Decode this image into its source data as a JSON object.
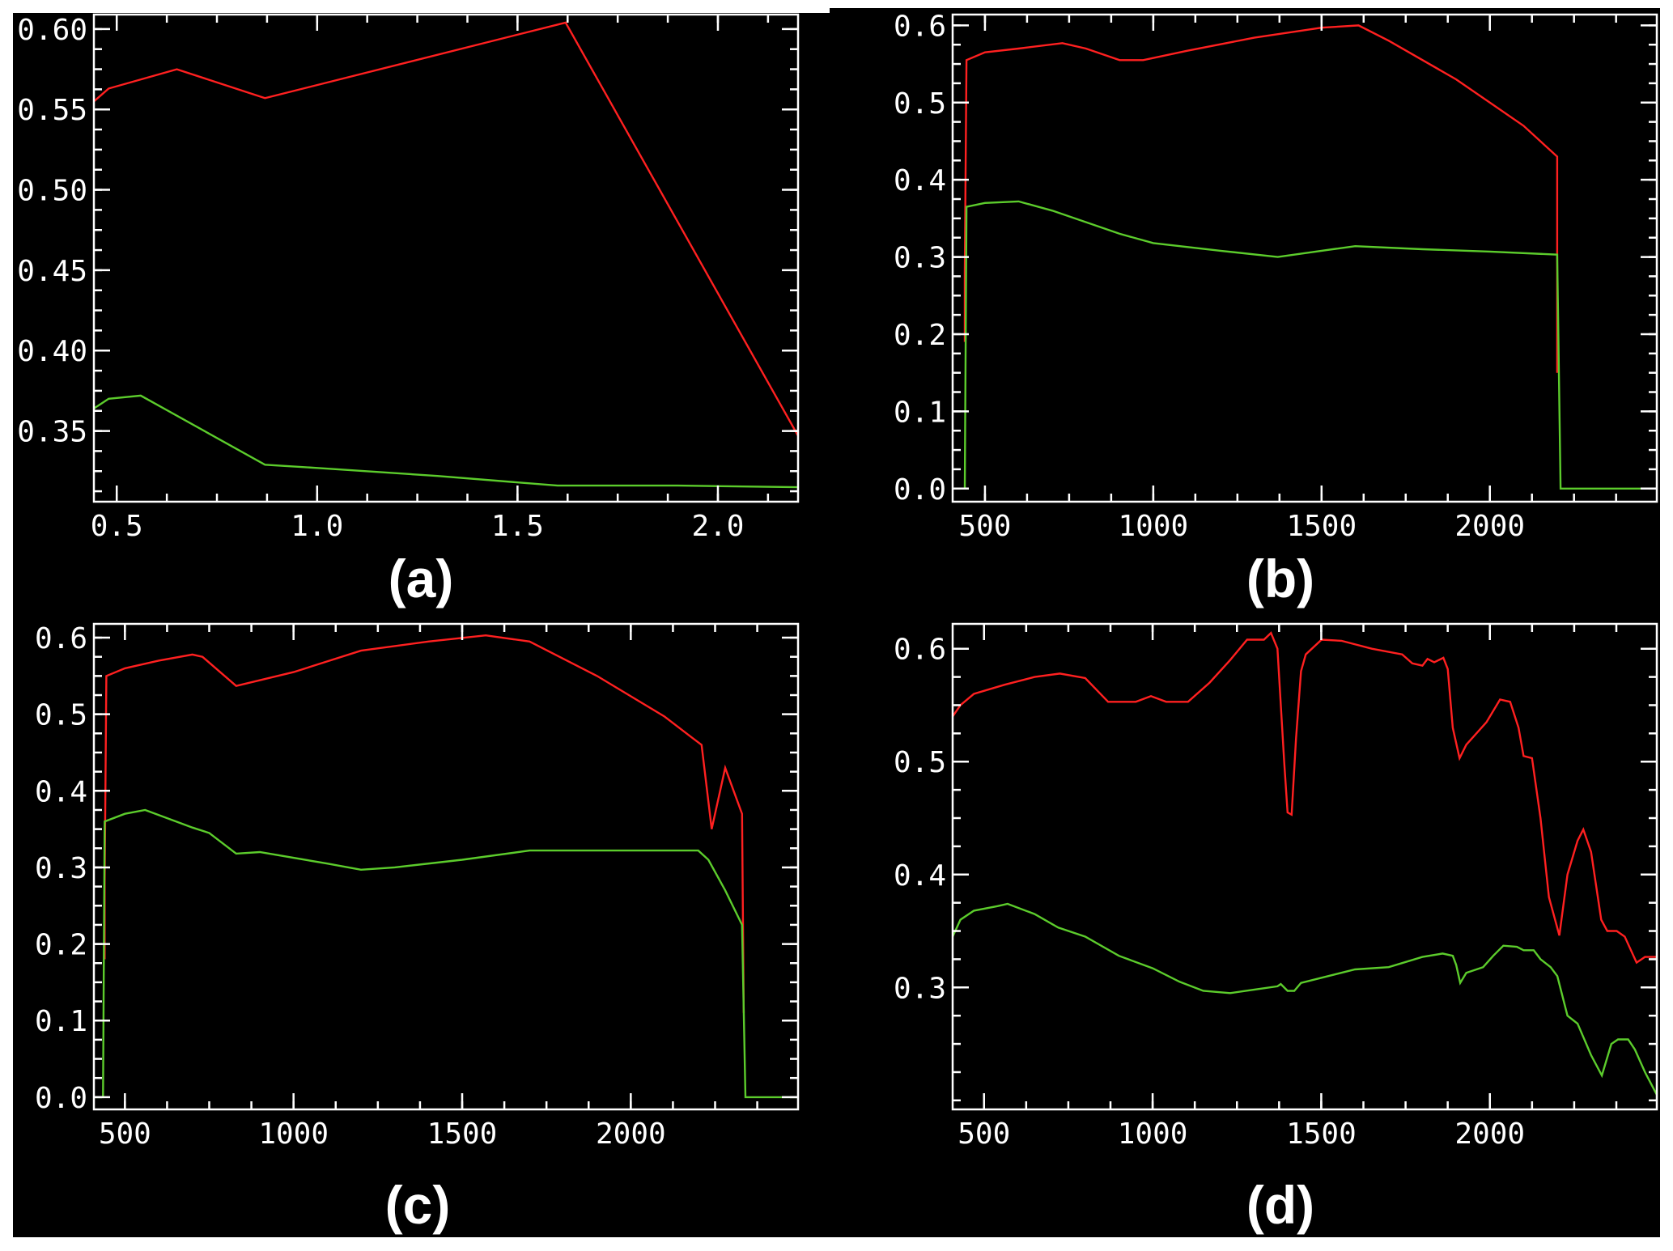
{
  "colors": {
    "background": "#000000",
    "axes": "#ffffff",
    "series_red": "#ff2020",
    "series_green": "#5ccc2c"
  },
  "chart_data": [
    {
      "type": "line",
      "panel_label": "(a)",
      "xlim": [
        0.443,
        2.2
      ],
      "ylim": [
        0.306,
        0.609
      ],
      "xticks": [
        0.5,
        1.0,
        1.5,
        2.0
      ],
      "xtick_labels": [
        "0.5",
        "1.0",
        "1.5",
        "2.0"
      ],
      "x_minor_step": 0.125,
      "yticks": [
        0.35,
        0.4,
        0.45,
        0.5,
        0.55,
        0.6
      ],
      "ytick_labels": [
        "0.35",
        "0.40",
        "0.45",
        "0.50",
        "0.55",
        "0.60"
      ],
      "y_minor_step": 0.0125,
      "grid": false,
      "series": [
        {
          "color": "#ff2020",
          "x": [
            0.443,
            0.48,
            0.65,
            0.87,
            1.62,
            2.2
          ],
          "y": [
            0.555,
            0.563,
            0.575,
            0.557,
            0.604,
            0.347
          ]
        },
        {
          "color": "#5ccc2c",
          "x": [
            0.443,
            0.48,
            0.56,
            0.87,
            1.0,
            1.3,
            1.6,
            1.9,
            2.2
          ],
          "y": [
            0.364,
            0.37,
            0.372,
            0.329,
            0.327,
            0.322,
            0.316,
            0.316,
            0.315
          ]
        }
      ]
    },
    {
      "type": "line",
      "panel_label": "(b)",
      "xlim": [
        404,
        2496
      ],
      "ylim": [
        -0.017,
        0.614
      ],
      "xticks": [
        500,
        1000,
        1500,
        2000
      ],
      "xtick_labels": [
        "500",
        "1000",
        "1500",
        "2000"
      ],
      "x_minor_step": 125,
      "yticks": [
        0.0,
        0.1,
        0.2,
        0.3,
        0.4,
        0.5,
        0.6
      ],
      "ytick_labels": [
        "0.0",
        "0.1",
        "0.2",
        "0.3",
        "0.4",
        "0.5",
        "0.6"
      ],
      "y_minor_step": 0.025,
      "grid": false,
      "series": [
        {
          "color": "#ff2020",
          "x": [
            440,
            440,
            445,
            500,
            600,
            730,
            800,
            900,
            970,
            1100,
            1300,
            1500,
            1610,
            1700,
            1900,
            2100,
            2200,
            2200
          ],
          "y": [
            0.19,
            0.28,
            0.555,
            0.565,
            0.57,
            0.577,
            0.57,
            0.555,
            0.555,
            0.567,
            0.584,
            0.597,
            0.6,
            0.58,
            0.53,
            0.47,
            0.43,
            0.15
          ]
        },
        {
          "color": "#5ccc2c",
          "x": [
            404,
            440,
            445,
            500,
            600,
            700,
            900,
            1000,
            1200,
            1370,
            1500,
            1600,
            1800,
            2000,
            2200,
            2210,
            2496
          ],
          "y": [
            0,
            0,
            0.365,
            0.37,
            0.372,
            0.36,
            0.33,
            0.318,
            0.308,
            0.3,
            0.308,
            0.314,
            0.31,
            0.307,
            0.303,
            0,
            0
          ]
        }
      ]
    },
    {
      "type": "line",
      "panel_label": "(c)",
      "xlim": [
        408,
        2496
      ],
      "ylim": [
        -0.016,
        0.618
      ],
      "xticks": [
        500,
        1000,
        1500,
        2000
      ],
      "xtick_labels": [
        "500",
        "1000",
        "1500",
        "2000"
      ],
      "x_minor_step": 125,
      "yticks": [
        0.0,
        0.1,
        0.2,
        0.3,
        0.4,
        0.5,
        0.6
      ],
      "ytick_labels": [
        "0.0",
        "0.1",
        "0.2",
        "0.3",
        "0.4",
        "0.5",
        "0.6"
      ],
      "y_minor_step": 0.025,
      "grid": false,
      "series": [
        {
          "color": "#ff2020",
          "x": [
            440,
            440,
            445,
            500,
            600,
            700,
            730,
            830,
            1000,
            1200,
            1400,
            1570,
            1700,
            1900,
            2100,
            2180,
            2210,
            2240,
            2280,
            2330,
            2335
          ],
          "y": [
            0.18,
            0.28,
            0.55,
            0.56,
            0.57,
            0.578,
            0.575,
            0.537,
            0.555,
            0.583,
            0.595,
            0.603,
            0.595,
            0.55,
            0.497,
            0.47,
            0.46,
            0.35,
            0.43,
            0.37,
            0.11
          ]
        },
        {
          "color": "#5ccc2c",
          "x": [
            408,
            435,
            440,
            500,
            560,
            700,
            750,
            830,
            900,
            1100,
            1200,
            1300,
            1500,
            1700,
            2200,
            2230,
            2280,
            2330,
            2340,
            2496
          ],
          "y": [
            0,
            0,
            0.36,
            0.37,
            0.375,
            0.352,
            0.345,
            0.318,
            0.32,
            0.305,
            0.297,
            0.3,
            0.31,
            0.322,
            0.322,
            0.31,
            0.27,
            0.225,
            0,
            0
          ]
        }
      ]
    },
    {
      "type": "line",
      "panel_label": "(d)",
      "xlim": [
        407,
        2495
      ],
      "ylim": [
        0.192,
        0.622
      ],
      "xticks": [
        500,
        1000,
        1500,
        2000
      ],
      "xtick_labels": [
        "500",
        "1000",
        "1500",
        "2000"
      ],
      "x_minor_step": 125,
      "yticks": [
        0.3,
        0.4,
        0.5,
        0.6
      ],
      "ytick_labels": [
        "0.3",
        "0.4",
        "0.5",
        "0.6"
      ],
      "y_minor_step": 0.025,
      "grid": false,
      "series": [
        {
          "color": "#ff2020",
          "x": [
            407,
            430,
            470,
            560,
            650,
            725,
            800,
            868,
            950,
            995,
            1040,
            1105,
            1169,
            1230,
            1280,
            1330,
            1351,
            1370,
            1390,
            1400,
            1412,
            1425,
            1440,
            1454,
            1501,
            1560,
            1650,
            1740,
            1770,
            1800,
            1815,
            1835,
            1862,
            1875,
            1890,
            1910,
            1930,
            1990,
            2030,
            2060,
            2085,
            2100,
            2125,
            2150,
            2175,
            2206,
            2230,
            2260,
            2277,
            2300,
            2330,
            2348,
            2376,
            2400,
            2435,
            2460,
            2495
          ],
          "y": [
            0.54,
            0.55,
            0.56,
            0.568,
            0.575,
            0.578,
            0.574,
            0.553,
            0.553,
            0.558,
            0.553,
            0.553,
            0.57,
            0.59,
            0.608,
            0.608,
            0.614,
            0.6,
            0.5,
            0.455,
            0.453,
            0.52,
            0.58,
            0.595,
            0.608,
            0.607,
            0.6,
            0.595,
            0.587,
            0.585,
            0.591,
            0.588,
            0.592,
            0.582,
            0.53,
            0.503,
            0.515,
            0.535,
            0.555,
            0.553,
            0.53,
            0.505,
            0.503,
            0.45,
            0.38,
            0.346,
            0.4,
            0.43,
            0.44,
            0.42,
            0.36,
            0.35,
            0.35,
            0.345,
            0.322,
            0.327,
            0.327
          ]
        },
        {
          "color": "#5ccc2c",
          "x": [
            407,
            430,
            470,
            540,
            570,
            650,
            720,
            800,
            900,
            1000,
            1080,
            1150,
            1230,
            1300,
            1370,
            1380,
            1400,
            1420,
            1440,
            1520,
            1600,
            1700,
            1800,
            1860,
            1890,
            1900,
            1912,
            1930,
            1980,
            2010,
            2040,
            2080,
            2100,
            2130,
            2150,
            2180,
            2200,
            2230,
            2260,
            2300,
            2332,
            2360,
            2380,
            2410,
            2430,
            2460,
            2495
          ],
          "y": [
            0.345,
            0.36,
            0.368,
            0.372,
            0.374,
            0.365,
            0.353,
            0.345,
            0.328,
            0.317,
            0.305,
            0.297,
            0.295,
            0.298,
            0.301,
            0.303,
            0.297,
            0.297,
            0.304,
            0.31,
            0.316,
            0.318,
            0.327,
            0.33,
            0.328,
            0.32,
            0.304,
            0.313,
            0.318,
            0.328,
            0.337,
            0.336,
            0.333,
            0.333,
            0.325,
            0.318,
            0.31,
            0.275,
            0.268,
            0.24,
            0.222,
            0.25,
            0.254,
            0.254,
            0.245,
            0.225,
            0.205
          ]
        }
      ]
    }
  ]
}
